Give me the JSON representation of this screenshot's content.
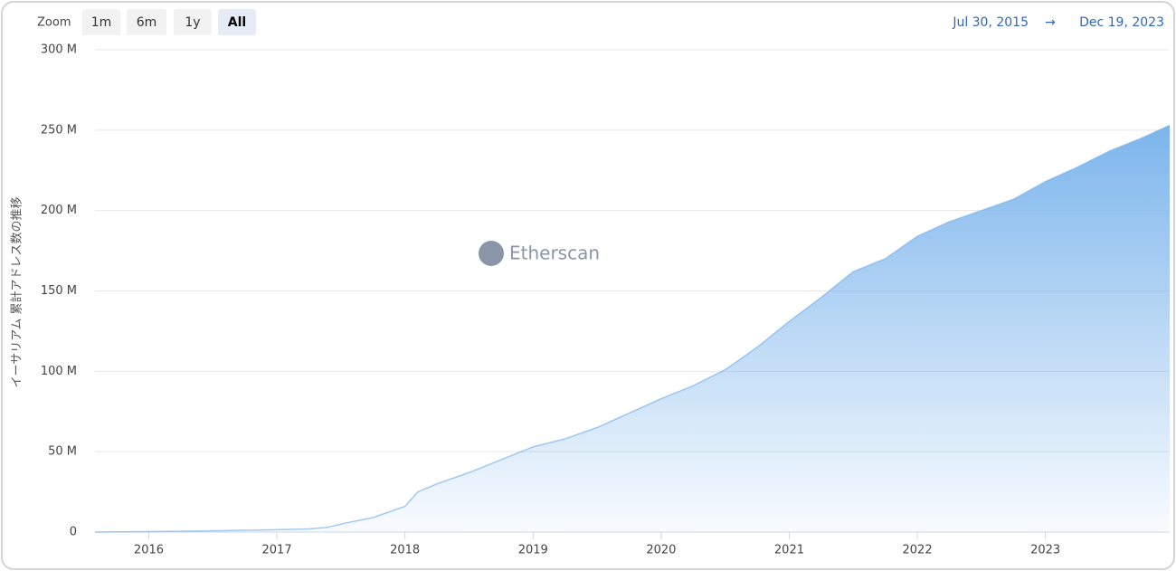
{
  "zoom": {
    "label": "Zoom",
    "buttons": [
      "1m",
      "6m",
      "1y",
      "All"
    ]
  },
  "range": {
    "from": "Jul 30, 2015",
    "arrow": "→",
    "to": "Dec 19, 2023"
  },
  "watermark": "Etherscan",
  "chart_data": {
    "type": "area",
    "y_label": "イーサリアム 累計アドレス数の推移",
    "x": [
      2015.58,
      2016.0,
      2016.5,
      2017.0,
      2017.25,
      2017.4,
      2017.5,
      2017.75,
      2018.0,
      2018.1,
      2018.25,
      2018.5,
      2018.75,
      2019.0,
      2019.25,
      2019.5,
      2019.75,
      2020.0,
      2020.25,
      2020.5,
      2020.75,
      2021.0,
      2021.25,
      2021.5,
      2021.75,
      2022.0,
      2022.25,
      2022.5,
      2022.75,
      2023.0,
      2023.25,
      2023.5,
      2023.75,
      2023.97
    ],
    "series": [
      {
        "color": "#7cb5ec",
        "values": [
          0,
          0.3,
          0.8,
          1.5,
          2,
          3,
          5,
          9,
          16,
          25,
          30,
          37,
          45,
          53,
          58,
          65,
          74,
          83,
          91,
          101,
          115,
          131,
          146,
          162,
          170,
          184,
          193,
          200,
          207,
          218,
          227,
          237,
          245,
          253
        ]
      }
    ],
    "xlim": [
      2015.58,
      2023.97
    ],
    "xticks": [
      2016,
      2017,
      2018,
      2019,
      2020,
      2021,
      2022,
      2023
    ],
    "ylim": [
      0,
      300
    ],
    "yticks": [
      {
        "value": 0,
        "label": "0"
      },
      {
        "value": 50,
        "label": "50 M"
      },
      {
        "value": 100,
        "label": "100 M"
      },
      {
        "value": 150,
        "label": "150 M"
      },
      {
        "value": 200,
        "label": "200 M"
      },
      {
        "value": 250,
        "label": "250 M"
      },
      {
        "value": 300,
        "label": "300 M"
      }
    ],
    "grid": true
  }
}
